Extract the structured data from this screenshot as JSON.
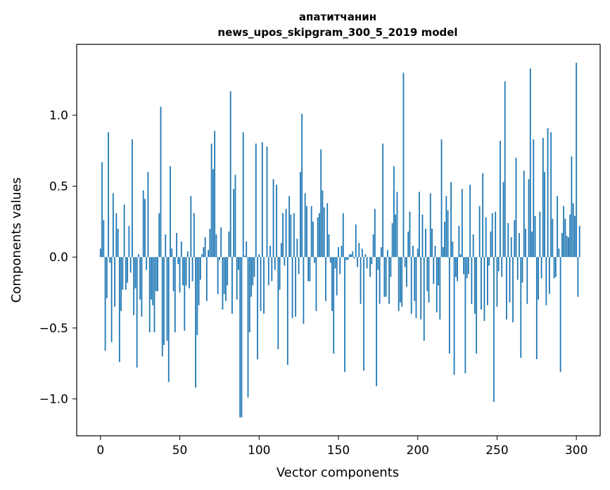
{
  "chart_data": {
    "type": "bar",
    "title": "апатитчанин",
    "subtitle": "news_upos_skipgram_300_5_2019 model",
    "xlabel": "Vector components",
    "ylabel": "Components values",
    "xlim": [
      -15,
      315
    ],
    "ylim": [
      -1.26,
      1.5
    ],
    "x_ticks": [
      0,
      50,
      100,
      150,
      200,
      250,
      300
    ],
    "x_tick_labels": [
      "0",
      "50",
      "100",
      "150",
      "200",
      "250",
      "300"
    ],
    "y_ticks": [
      1.0,
      0.5,
      0.0,
      -0.5,
      -1.0
    ],
    "y_tick_labels": [
      "1.0",
      "0.5",
      "0.0",
      "−0.5",
      "−1.0"
    ],
    "grid": false,
    "legend": "none",
    "bar_color": "#1f77b4",
    "series": [
      {
        "values": [
          0.06,
          0.67,
          0.26,
          -0.66,
          -0.29,
          0.88,
          -0.04,
          -0.6,
          0.45,
          -0.35,
          0.31,
          0.2,
          -0.74,
          -0.38,
          -0.23,
          0.37,
          -0.23,
          -0.18,
          0.22,
          -0.11,
          0.83,
          -0.41,
          -0.22,
          -0.78,
          0.02,
          -0.3,
          -0.42,
          0.47,
          0.41,
          -0.09,
          0.6,
          -0.53,
          -0.3,
          -0.34,
          -0.53,
          -0.24,
          -0.24,
          0.31,
          1.06,
          -0.7,
          -0.62,
          0.16,
          -0.59,
          -0.88,
          0.64,
          0.06,
          -0.24,
          -0.53,
          0.17,
          -0.05,
          -0.25,
          0.11,
          -0.2,
          -0.52,
          -0.2,
          0.04,
          -0.22,
          0.43,
          -0.17,
          0.31,
          -0.92,
          -0.55,
          -0.34,
          -0.16,
          0.02,
          0.07,
          0.14,
          -0.31,
          0.05,
          0.2,
          0.8,
          0.62,
          0.89,
          0.16,
          -0.26,
          -0.02,
          0.21,
          -0.37,
          -0.26,
          -0.31,
          -0.2,
          0.18,
          1.17,
          -0.4,
          0.48,
          0.58,
          -0.3,
          -0.09,
          -1.13,
          -1.13,
          0.88,
          0.01,
          0.11,
          -0.99,
          -0.53,
          -0.28,
          -0.2,
          -0.14,
          0.8,
          -0.72,
          0.02,
          -0.38,
          0.81,
          -0.4,
          0.0,
          0.78,
          -0.2,
          0.08,
          -0.17,
          0.55,
          -0.09,
          0.51,
          -0.65,
          -0.23,
          0.1,
          0.31,
          -0.06,
          0.34,
          -0.76,
          0.43,
          0.3,
          -0.43,
          0.31,
          -0.42,
          0.13,
          -0.12,
          0.6,
          1.01,
          -0.47,
          0.45,
          0.36,
          -0.17,
          -0.17,
          0.36,
          0.25,
          -0.04,
          -0.38,
          0.28,
          0.31,
          0.76,
          0.47,
          0.35,
          -0.31,
          0.38,
          0.16,
          -0.04,
          -0.38,
          -0.68,
          -0.08,
          -0.27,
          0.07,
          -0.12,
          0.08,
          0.31,
          -0.81,
          -0.02,
          -0.02,
          0.02,
          0.02,
          0.04,
          -0.01,
          0.23,
          -0.07,
          0.1,
          -0.33,
          0.06,
          -0.8,
          0.02,
          -0.08,
          0.0,
          -0.14,
          -0.05,
          0.16,
          0.34,
          -0.91,
          -0.09,
          -0.33,
          0.07,
          0.8,
          -0.28,
          -0.28,
          0.05,
          -0.33,
          -0.14,
          0.24,
          0.64,
          0.3,
          0.46,
          -0.38,
          -0.32,
          -0.35,
          1.3,
          -0.07,
          -0.21,
          0.18,
          0.32,
          -0.4,
          0.08,
          -0.31,
          -0.43,
          0.06,
          0.46,
          -0.44,
          0.3,
          -0.59,
          0.2,
          -0.24,
          -0.32,
          0.45,
          0.2,
          -0.19,
          0.08,
          -0.39,
          -0.2,
          -0.44,
          0.83,
          0.07,
          0.25,
          0.43,
          0.33,
          -0.68,
          0.53,
          0.11,
          -0.83,
          -0.14,
          -0.17,
          0.22,
          0.02,
          0.48,
          -0.12,
          -0.82,
          -0.15,
          -0.12,
          0.51,
          -0.33,
          0.16,
          -0.4,
          -0.68,
          0.0,
          0.36,
          -0.37,
          0.59,
          -0.45,
          0.28,
          -0.34,
          -0.06,
          0.18,
          0.31,
          -1.02,
          0.32,
          -0.35,
          -0.1,
          0.82,
          -0.14,
          0.53,
          1.24,
          -0.44,
          0.24,
          -0.32,
          0.14,
          -0.46,
          0.26,
          0.7,
          -0.16,
          0.17,
          -0.71,
          -0.18,
          0.61,
          0.2,
          -0.33,
          0.55,
          1.33,
          0.18,
          0.83,
          0.29,
          -0.72,
          -0.3,
          0.32,
          -0.15,
          0.84,
          0.6,
          -0.34,
          0.91,
          -0.26,
          0.88,
          0.27,
          -0.15,
          -0.14,
          0.43,
          0.06,
          -0.81,
          0.17,
          0.36,
          0.27,
          0.15,
          0.14,
          0.3,
          0.71,
          0.38,
          0.29,
          1.37,
          -0.28,
          0.22
        ]
      }
    ]
  }
}
